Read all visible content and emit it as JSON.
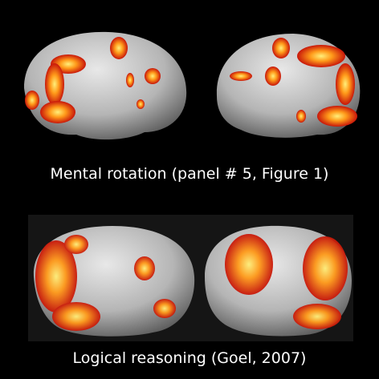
{
  "panels": [
    {
      "caption": "Mental rotation (panel # 5, Figure 1)"
    },
    {
      "caption": "Logical reasoning (Goel, 2007)"
    }
  ]
}
